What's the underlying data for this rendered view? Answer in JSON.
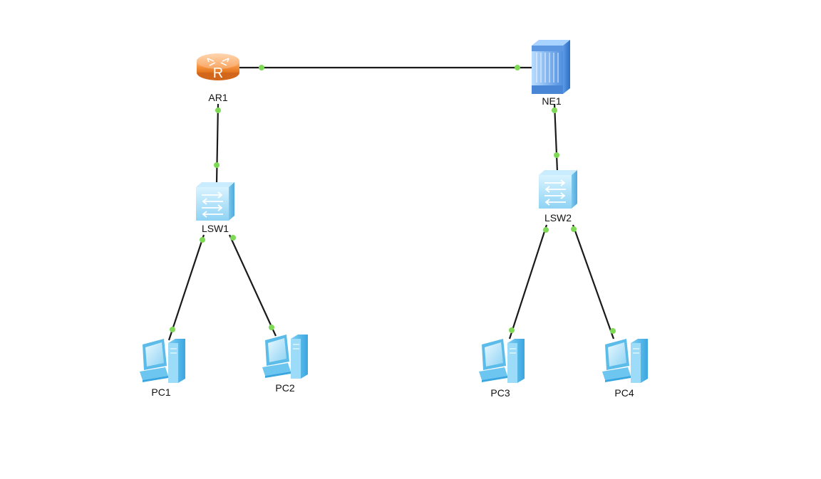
{
  "topology": {
    "devices": [
      {
        "id": "AR1",
        "label": "AR1",
        "type": "router",
        "icon": "router-icon"
      },
      {
        "id": "NE1",
        "label": "NE1",
        "type": "chassis-router",
        "icon": "ne-router-icon"
      },
      {
        "id": "LSW1",
        "label": "LSW1",
        "type": "switch",
        "icon": "switch-icon"
      },
      {
        "id": "LSW2",
        "label": "LSW2",
        "type": "switch",
        "icon": "switch-icon"
      },
      {
        "id": "PC1",
        "label": "PC1",
        "type": "pc",
        "icon": "pc-icon"
      },
      {
        "id": "PC2",
        "label": "PC2",
        "type": "pc",
        "icon": "pc-icon"
      },
      {
        "id": "PC3",
        "label": "PC3",
        "type": "pc",
        "icon": "pc-icon"
      },
      {
        "id": "PC4",
        "label": "PC4",
        "type": "pc",
        "icon": "pc-icon"
      }
    ],
    "links": [
      {
        "from": "AR1",
        "to": "NE1"
      },
      {
        "from": "AR1",
        "to": "LSW1"
      },
      {
        "from": "NE1",
        "to": "LSW2"
      },
      {
        "from": "LSW1",
        "to": "PC1"
      },
      {
        "from": "LSW1",
        "to": "PC2"
      },
      {
        "from": "LSW2",
        "to": "PC3"
      },
      {
        "from": "LSW2",
        "to": "PC4"
      }
    ],
    "colors": {
      "link": "#1a1a1a",
      "port_up": "#7ed957",
      "router_orange": "#f5923e",
      "device_blue": "#8fd3f4"
    }
  }
}
